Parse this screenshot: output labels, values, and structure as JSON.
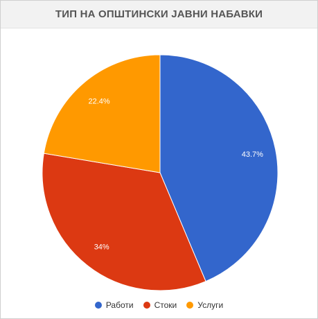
{
  "chart_data": {
    "type": "pie",
    "title": "ТИП НА ОПШТИНСКИ ЈАВНИ НАБАВКИ",
    "categories": [
      "Работи",
      "Стоки",
      "Услуги"
    ],
    "values": [
      43.7,
      34,
      22.4
    ],
    "labels": [
      "43.7%",
      "34%",
      "22.4%"
    ],
    "colors": [
      "#3366cc",
      "#dc3912",
      "#ff9900"
    ],
    "legend": "bottom",
    "start_angle_deg": 0,
    "direction": "clockwise"
  }
}
